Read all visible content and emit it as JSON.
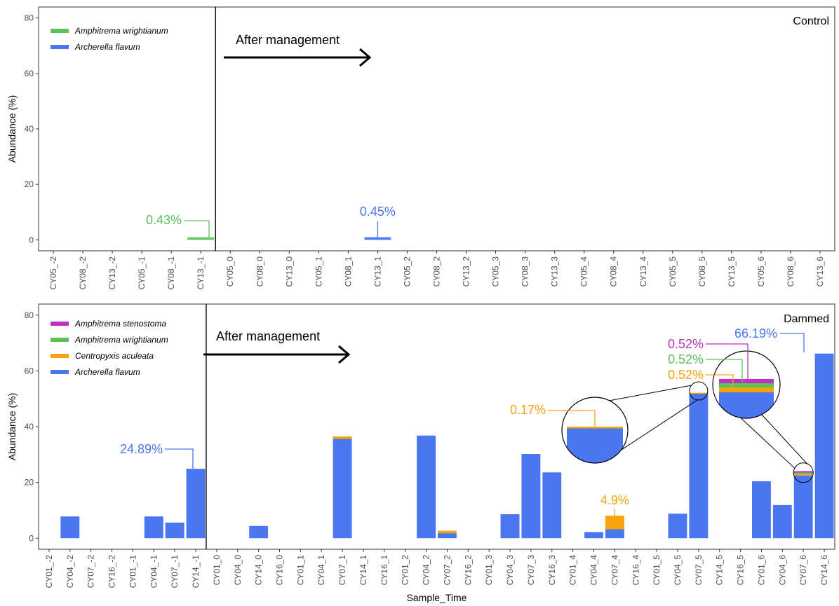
{
  "colors": {
    "stenostoma": "#c02fc6",
    "wrightianum": "#5cc25c",
    "aculeata": "#f6a30c",
    "flavum": "#4a76f0"
  },
  "chart_data": [
    {
      "type": "bar",
      "stacked": true,
      "panel_label": "Control",
      "xlabel": "",
      "ylabel": "Abundance (%)",
      "ylim": [
        0,
        80
      ],
      "yticks": [
        0,
        20,
        40,
        60,
        80
      ],
      "management_text": "After management",
      "legend": [
        {
          "name": "Amphitrema wrightianum",
          "color": "wrightianum"
        },
        {
          "name": "Archerella flavum",
          "color": "flavum"
        }
      ],
      "categories": [
        "CY05_-2",
        "CY08_-2",
        "CY13_-2",
        "CY05_-1",
        "CY08_-1",
        "CY13_-1",
        "CY05_0",
        "CY08_0",
        "CY13_0",
        "CY05_1",
        "CY08_1",
        "CY13_1",
        "CY05_2",
        "CY08_2",
        "CY13_2",
        "CY05_3",
        "CY08_3",
        "CY13_3",
        "CY05_4",
        "CY08_4",
        "CY13_4",
        "CY05_5",
        "CY08_5",
        "CY13_5",
        "CY05_6",
        "CY08_6",
        "CY13_6"
      ],
      "series": [
        {
          "name": "Archerella flavum",
          "color": "flavum",
          "values": [
            0,
            0,
            0,
            0,
            0,
            0,
            0,
            0,
            0,
            0,
            0,
            0.45,
            0,
            0,
            0,
            0,
            0,
            0,
            0,
            0,
            0,
            0,
            0,
            0,
            0,
            0,
            0
          ]
        },
        {
          "name": "Amphitrema wrightianum",
          "color": "wrightianum",
          "values": [
            0,
            0,
            0,
            0,
            0,
            0.43,
            0,
            0,
            0,
            0,
            0,
            0,
            0,
            0,
            0,
            0,
            0,
            0,
            0,
            0,
            0,
            0,
            0,
            0,
            0,
            0,
            0
          ]
        }
      ],
      "annotations": [
        {
          "text": "0.43%",
          "category": "CY13_-1",
          "color": "wrightianum"
        },
        {
          "text": "0.45%",
          "category": "CY13_1",
          "color": "flavum"
        }
      ]
    },
    {
      "type": "bar",
      "stacked": true,
      "panel_label": "Dammed",
      "xlabel": "Sample_Time",
      "ylabel": "Abundance (%)",
      "ylim": [
        0,
        80
      ],
      "yticks": [
        0,
        20,
        40,
        60,
        80
      ],
      "management_text": "After management",
      "legend": [
        {
          "name": "Amphitrema stenostoma",
          "color": "stenostoma"
        },
        {
          "name": "Amphitrema wrightianum",
          "color": "wrightianum"
        },
        {
          "name": "Centropyxis aculeata",
          "color": "aculeata"
        },
        {
          "name": "Archerella flavum",
          "color": "flavum"
        }
      ],
      "categories": [
        "CY01_-2",
        "CY04_-2",
        "CY07_-2",
        "CY16_-2",
        "CY01_-1",
        "CY04_-1",
        "CY07_-1",
        "CY14_-1",
        "CY01_0",
        "CY04_0",
        "CY14_0",
        "CY16_0",
        "CY01_1",
        "CY04_1",
        "CY07_1",
        "CY14_1",
        "CY16_1",
        "CY01_2",
        "CY04_2",
        "CY07_2",
        "CY16_2",
        "CY01_3",
        "CY04_3",
        "CY07_3",
        "CY16_3",
        "CY01_4",
        "CY04_4",
        "CY07_4",
        "CY16_4",
        "CY01_5",
        "CY04_5",
        "CY07_5",
        "CY14_5",
        "CY16_5",
        "CY01_6",
        "CY04_6",
        "CY07_6",
        "CY14_6"
      ],
      "series": [
        {
          "name": "Archerella flavum",
          "color": "flavum",
          "values": [
            0,
            7.8,
            0,
            0,
            0,
            7.8,
            5.6,
            24.89,
            0,
            0,
            4.4,
            0,
            0,
            0,
            35.6,
            0,
            0,
            0,
            36.8,
            1.8,
            0,
            0,
            8.6,
            30.2,
            23.6,
            0,
            2.2,
            3.2,
            0,
            0,
            8.8,
            51.8,
            0,
            0,
            20.4,
            11.9,
            22.5,
            66.19
          ]
        },
        {
          "name": "Centropyxis aculeata",
          "color": "aculeata",
          "values": [
            0,
            0,
            0,
            0,
            0,
            0,
            0,
            0,
            0,
            0,
            0,
            0,
            0,
            0,
            0.9,
            0,
            0,
            0,
            0,
            0.9,
            0,
            0,
            0,
            0,
            0,
            0,
            0,
            4.9,
            0,
            0,
            0,
            0.17,
            0,
            0,
            0,
            0,
            0.52,
            0
          ]
        },
        {
          "name": "Amphitrema wrightianum",
          "color": "wrightianum",
          "values": [
            0,
            0,
            0,
            0,
            0,
            0,
            0,
            0,
            0,
            0,
            0,
            0,
            0,
            0,
            0,
            0,
            0,
            0,
            0,
            0,
            0,
            0,
            0,
            0,
            0,
            0,
            0,
            0,
            0,
            0,
            0,
            0,
            0,
            0,
            0,
            0,
            0.52,
            0
          ]
        },
        {
          "name": "Amphitrema stenostoma",
          "color": "stenostoma",
          "values": [
            0,
            0,
            0,
            0,
            0,
            0,
            0,
            0,
            0,
            0,
            0,
            0,
            0,
            0,
            0,
            0,
            0,
            0,
            0,
            0,
            0,
            0,
            0,
            0,
            0,
            0,
            0,
            0,
            0,
            0,
            0,
            0,
            0,
            0,
            0,
            0,
            0.52,
            0
          ]
        }
      ],
      "annotations": [
        {
          "text": "24.89%",
          "category": "CY14_-1",
          "color": "flavum"
        },
        {
          "text": "4.9%",
          "category": "CY07_4",
          "color": "aculeata"
        },
        {
          "text": "66.19%",
          "category": "CY14_6",
          "color": "flavum"
        },
        {
          "text": "0.17%",
          "category": "CY07_5",
          "color": "aculeata"
        },
        {
          "text": "0.52%",
          "category": "CY07_6",
          "color": "stenostoma"
        },
        {
          "text": "0.52%",
          "category": "CY07_6",
          "color": "wrightianum"
        },
        {
          "text": "0.52%",
          "category": "CY07_6",
          "color": "aculeata"
        }
      ]
    }
  ]
}
